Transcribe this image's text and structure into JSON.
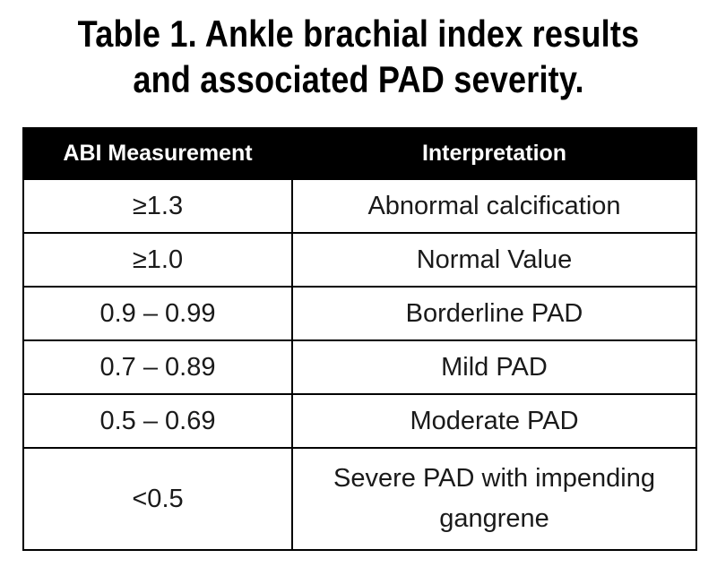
{
  "title": {
    "line1": "Table 1. Ankle brachial index results",
    "line2": "and associated PAD severity."
  },
  "table": {
    "headers": [
      "ABI Measurement",
      "Interpretation"
    ],
    "rows": [
      {
        "measurement": "≥1.3",
        "interpretation": "Abnormal calcification"
      },
      {
        "measurement": "≥1.0",
        "interpretation": "Normal Value"
      },
      {
        "measurement": "0.9 – 0.99",
        "interpretation": "Borderline PAD"
      },
      {
        "measurement": "0.7 – 0.89",
        "interpretation": "Mild PAD"
      },
      {
        "measurement": "0.5 – 0.69",
        "interpretation": "Moderate PAD"
      },
      {
        "measurement": "<0.5",
        "interpretation": "Severe PAD with impending gangrene"
      }
    ]
  }
}
